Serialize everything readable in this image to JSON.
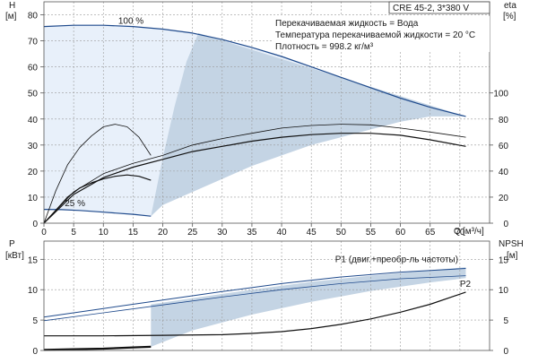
{
  "colors": {
    "curve_blue": "#1f4a8c",
    "curve_black": "#111111",
    "shade_light": "#e8f0fa",
    "shade_dark": "#c4d4e4",
    "grid": "#9a9a9a"
  },
  "chart_data": [
    {
      "type": "line",
      "panel": "head-efficiency",
      "model_label": "CRE 45-2, 3*380 V",
      "info_lines": [
        "Перекачиваемая жидкость = Вода",
        "Температура перекачиваемой жидкости = 20 °C",
        "Плотность = 998.2 кг/м³"
      ],
      "left_axis": {
        "label": "H",
        "unit": "[м]",
        "ylim": [
          0,
          85
        ],
        "ticks": [
          0,
          10,
          20,
          30,
          40,
          50,
          60,
          70,
          80
        ]
      },
      "right_axis": {
        "label": "eta",
        "unit": "[%]",
        "ylim": [
          0,
          170
        ],
        "ticks": [
          0,
          20,
          40,
          60,
          80,
          100
        ]
      },
      "x_axis": {
        "label": "Q",
        "unit": "[м³/ч]",
        "xlim": [
          0,
          75
        ],
        "ticks": [
          0,
          5,
          10,
          15,
          20,
          25,
          30,
          35,
          40,
          45,
          50,
          55,
          60,
          65,
          70
        ]
      },
      "annotations": [
        {
          "text": "100 %",
          "x": 12.5,
          "y": 76.5
        },
        {
          "text": "25 %",
          "x": 3.5,
          "y": 6.5
        }
      ],
      "series": [
        {
          "name": "100 %",
          "axis": "left",
          "color": "#1f4a8c",
          "width": 1.2,
          "x": [
            0,
            5,
            10,
            15,
            20,
            25,
            30,
            35,
            40,
            45,
            50,
            55,
            60,
            65,
            71
          ],
          "y": [
            75.5,
            76,
            76,
            75.5,
            74.5,
            73,
            70.5,
            67.5,
            64,
            60,
            56,
            52,
            48,
            44.5,
            41
          ]
        },
        {
          "name": "25 %",
          "axis": "left",
          "color": "#1f4a8c",
          "width": 1.2,
          "x": [
            0,
            3,
            6,
            9,
            12,
            15,
            18
          ],
          "y": [
            5.3,
            5.2,
            4.9,
            4.4,
            3.9,
            3.4,
            2.7
          ]
        },
        {
          "name": "",
          "axis": "right",
          "color": "#111111",
          "width": 0.8,
          "x": [
            0,
            2,
            4,
            6,
            8,
            10,
            12,
            14,
            16,
            18
          ],
          "y": [
            0,
            25,
            45,
            58,
            67,
            74,
            76,
            74,
            66,
            52
          ]
        },
        {
          "name": "",
          "axis": "right",
          "color": "#111111",
          "width": 1.2,
          "x": [
            0,
            2,
            4,
            6,
            8,
            10,
            12,
            14,
            16,
            18
          ],
          "y": [
            0,
            10,
            20,
            27,
            31,
            34,
            36,
            37,
            36,
            33
          ]
        },
        {
          "name": "",
          "axis": "right",
          "color": "#111111",
          "width": 0.8,
          "x": [
            0,
            5,
            10,
            15,
            20,
            25,
            30,
            35,
            40,
            45,
            50,
            55,
            60,
            65,
            71
          ],
          "y": [
            0,
            24,
            38,
            46,
            52,
            60,
            65,
            69,
            73,
            75,
            76,
            75.5,
            73,
            70,
            66
          ]
        },
        {
          "name": "",
          "axis": "right",
          "color": "#111111",
          "width": 1.2,
          "x": [
            0,
            5,
            10,
            15,
            20,
            25,
            30,
            35,
            40,
            45,
            50,
            55,
            60,
            65,
            71
          ],
          "y": [
            0,
            22,
            35,
            43,
            49,
            55,
            59,
            63,
            66,
            68,
            69,
            69,
            67.5,
            64,
            59
          ]
        }
      ],
      "shaded_regions": [
        {
          "name": "operating-range",
          "color": "#e8f0fa",
          "x": [
            0,
            5,
            10,
            15,
            20,
            25,
            30,
            35,
            40,
            45,
            50,
            55,
            60,
            65,
            71,
            71,
            65,
            60,
            55,
            50,
            45,
            40,
            35,
            30,
            25,
            20,
            18,
            15,
            10,
            5,
            0
          ],
          "y": [
            75.5,
            76,
            76,
            75.5,
            74.5,
            73,
            70.5,
            67.5,
            64,
            60,
            56,
            52,
            48,
            44.5,
            41,
            41,
            41,
            39,
            36,
            33,
            30,
            26,
            22,
            17,
            12,
            7,
            2.7,
            3.4,
            4.4,
            5.1,
            5.3
          ]
        },
        {
          "name": "wedge",
          "color": "#c4d4e4",
          "x": [
            18,
            20,
            22,
            24,
            26,
            71,
            71,
            65,
            60,
            55,
            50,
            45,
            40,
            35,
            30,
            25,
            20
          ],
          "y": [
            2.7,
            25,
            45,
            62,
            73,
            41,
            41,
            41,
            39,
            36,
            33,
            30,
            26,
            22,
            17,
            12,
            7
          ]
        }
      ]
    },
    {
      "type": "line",
      "panel": "power-npsh",
      "left_axis": {
        "label": "P",
        "unit": "[кВт]",
        "ylim": [
          0,
          18
        ],
        "ticks": [
          0,
          5,
          10,
          15
        ]
      },
      "right_axis": {
        "label": "NPSH",
        "unit": "[м]",
        "ylim": [
          0,
          18
        ],
        "ticks": [
          0,
          5,
          10,
          15
        ]
      },
      "x_axis": {
        "xlim": [
          0,
          75
        ]
      },
      "annotations": [
        {
          "text": "P1 (двиг.+преобр-ль частоты)",
          "x": 49,
          "y": 14.5
        },
        {
          "text": "P2",
          "x": 70,
          "y": 10.5
        }
      ],
      "series": [
        {
          "name": "P1 (двиг.+преобр-ль частоты)",
          "axis": "left",
          "color": "#1f4a8c",
          "width": 1.0,
          "x": [
            0,
            10,
            20,
            30,
            40,
            50,
            60,
            71
          ],
          "y": [
            5.5,
            6.9,
            8.3,
            9.7,
            11,
            12.1,
            12.9,
            13.5
          ]
        },
        {
          "name": "P2",
          "axis": "left",
          "color": "#1f4a8c",
          "width": 0.8,
          "x": [
            0,
            10,
            20,
            30,
            40,
            50,
            60,
            71
          ],
          "y": [
            4.9,
            6.2,
            7.5,
            8.8,
            10,
            11,
            11.8,
            12.3
          ]
        },
        {
          "name": "",
          "axis": "right",
          "color": "#111111",
          "width": 1.2,
          "x": [
            0,
            10,
            20,
            30,
            35,
            40,
            45,
            50,
            55,
            60,
            65,
            71
          ],
          "y": [
            2.4,
            2.4,
            2.5,
            2.6,
            2.8,
            3.1,
            3.6,
            4.3,
            5.2,
            6.3,
            7.6,
            9.6
          ]
        },
        {
          "name": "",
          "axis": "left",
          "color": "#111111",
          "width": 2.2,
          "x": [
            0,
            5,
            10,
            15,
            18
          ],
          "y": [
            0.1,
            0.2,
            0.3,
            0.5,
            0.6
          ]
        }
      ],
      "shaded_regions": [
        {
          "name": "power-band",
          "color": "#c4d4e4",
          "x": [
            18,
            25,
            35,
            45,
            55,
            65,
            71,
            71,
            65,
            55,
            45,
            35,
            25,
            18
          ],
          "y": [
            0.6,
            3.3,
            5.9,
            8.0,
            9.8,
            11.2,
            11.9,
            13.7,
            13.2,
            12.3,
            11.3,
            10.0,
            8.6,
            7.6
          ]
        }
      ]
    }
  ]
}
